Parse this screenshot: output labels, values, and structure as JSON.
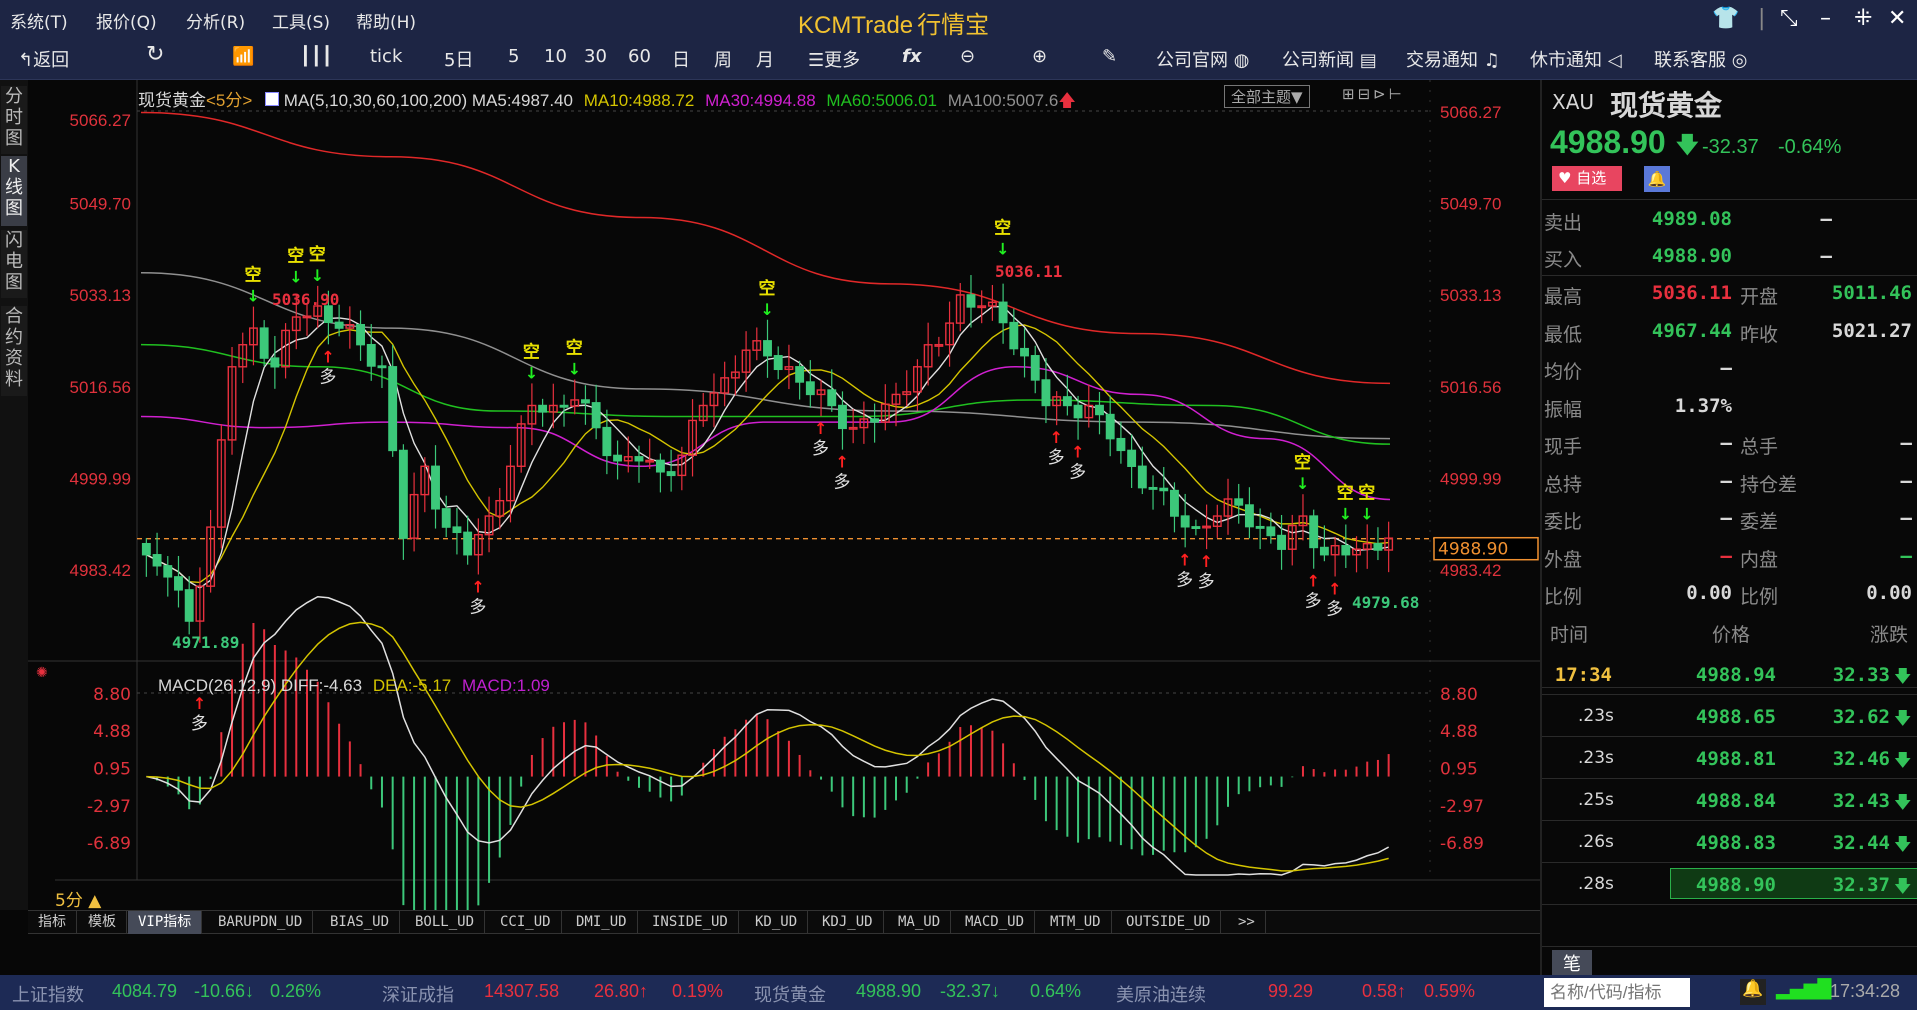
{
  "menu": [
    "系统(T)",
    "报价(Q)",
    "分析(R)",
    "工具(S)",
    "帮助(H)"
  ],
  "logo": {
    "brand": "KCMTrade",
    "product": "行情宝"
  },
  "window": {
    "icons": [
      "shirt-icon",
      "restore-icon",
      "minimize-icon",
      "maximize-icon",
      "close-icon"
    ]
  },
  "toolbar": {
    "back": "返回",
    "refresh": "refresh-icon",
    "periods": [
      "tick",
      "5日",
      "5",
      "10",
      "30",
      "60",
      "日",
      "周",
      "月"
    ],
    "more": "更多",
    "links": [
      "公司官网",
      "公司新闻",
      "交易通知",
      "休市通知",
      "联系客服"
    ]
  },
  "vtabs": [
    "分时图",
    "K线图",
    "闪电图",
    "合约资料"
  ],
  "chart_header": {
    "symbol": "现货黄金",
    "period": "<5分>",
    "ma_def": "MA(5,10,30,60,100,200)",
    "ma5": "MA5:4987.40",
    "ma10": "MA10:4988.72",
    "ma30": "MA30:4994.88",
    "ma60": "MA60:5006.01",
    "ma100": "MA100:5007.6",
    "theme": "全部主题▼"
  },
  "colors": {
    "up": "#e8303e",
    "down": "#3cc87a",
    "ma5": "#e0e0e0",
    "ma10": "#d4c400",
    "ma30": "#d020d0",
    "ma60": "#20c020",
    "ma100": "#909090",
    "ma200": "#e02828",
    "last": "#f09030"
  },
  "chart_data": {
    "type": "candlestick",
    "y_ticks": [
      "5066.27",
      "5049.70",
      "5033.13",
      "5016.56",
      "4999.99",
      "4983.42"
    ],
    "ylim": [
      4966,
      5068
    ],
    "last_price": "4988.90",
    "high_label": "5036.11",
    "high_label2": "5036.90",
    "low_label": "4971.89",
    "low_label2": "4979.68",
    "close": [
      4986,
      4982,
      4974,
      4991,
      5020,
      5027,
      5020,
      5029,
      5031,
      5027,
      5024,
      5020,
      4989,
      5002,
      4991,
      4986,
      4993,
      5002,
      5013,
      5013,
      5014,
      5009,
      5003,
      5003,
      5001,
      5004,
      5013,
      5018,
      5023,
      5022,
      5020,
      5015,
      5013,
      5009,
      5010,
      5015,
      5020,
      5024,
      5033,
      5031,
      5028,
      5022,
      5013,
      5013,
      5013,
      5007,
      5002,
      4998,
      4993,
      4991,
      4993,
      4995,
      4991,
      4987,
      4993,
      4986,
      4986,
      4988,
      4989
    ],
    "ma100": [
      5037,
      5027,
      5016,
      5012,
      5010,
      5007
    ],
    "ma200": [
      5066,
      5058,
      5047,
      5035,
      5026,
      5017
    ],
    "ma60": [
      5024,
      5020,
      5012,
      5011,
      5011,
      5014,
      5013,
      5006
    ],
    "ma30": [
      5011,
      5009,
      5010,
      5009,
      5002,
      5010,
      5010,
      5020,
      5015,
      5007,
      4996
    ],
    "signals": {
      "sell": "空",
      "buy": "多"
    },
    "macd": {
      "header": "MACD(26,12,9)",
      "diff": "DIFF:-4.63",
      "dea": "DEA:-5.17",
      "macd": "MACD:1.09",
      "y_ticks": [
        "8.80",
        "4.88",
        "0.95",
        "-2.97",
        "-6.89"
      ],
      "ylim": [
        -10,
        10
      ]
    }
  },
  "period_label": "5分 ▲",
  "indicator_tabs": [
    "指标",
    "模板",
    "VIP指标",
    "BARUPDN_UD",
    "BIAS_UD",
    "BOLL_UD",
    "CCI_UD",
    "DMI_UD",
    "INSIDE_UD",
    "KD_UD",
    "KDJ_UD",
    "MA_UD",
    "MACD_UD",
    "MTM_UD",
    "OUTSIDE_UD",
    ">>"
  ],
  "quote": {
    "code": "XAU",
    "name": "现货黄金",
    "price": "4988.90",
    "change": "-32.37",
    "pct": "-0.64%",
    "fav": "自选",
    "sell": [
      "卖出",
      "4989.08",
      "—"
    ],
    "buy": [
      "买入",
      "4988.90",
      "—"
    ],
    "rows": [
      [
        "最高",
        "5036.11",
        "开盘",
        "5011.46"
      ],
      [
        "最低",
        "4967.44",
        "昨收",
        "5021.27"
      ],
      [
        "均价",
        "—",
        "",
        ""
      ],
      [
        "振幅",
        "1.37%",
        "",
        ""
      ],
      [
        "现手",
        "—",
        "总手",
        "—"
      ],
      [
        "总持",
        "—",
        "持仓差",
        "—"
      ],
      [
        "委比",
        "—",
        "委差",
        "—"
      ],
      [
        "外盘",
        "—",
        "内盘",
        "—"
      ],
      [
        "比例",
        "0.00",
        "比例",
        "0.00"
      ]
    ]
  },
  "ticks": {
    "headers": [
      "时间",
      "价格",
      "涨跌"
    ],
    "rows": [
      [
        "17:34",
        "4988.94",
        "32.33"
      ],
      [
        ".23s",
        "4988.65",
        "32.62"
      ],
      [
        ".23s",
        "4988.81",
        "32.46"
      ],
      [
        ".25s",
        "4988.84",
        "32.43"
      ],
      [
        ".26s",
        "4988.83",
        "32.44"
      ],
      [
        ".28s",
        "4988.90",
        "32.37"
      ]
    ],
    "tab": "笔"
  },
  "status": {
    "items": [
      [
        "上证指数",
        "4084.79",
        "-10.66↓",
        "0.26%",
        "g"
      ],
      [
        "深证成指",
        "14307.58",
        "26.80↑",
        "0.19%",
        "r"
      ],
      [
        "现货黄金",
        "4988.90",
        "-32.37↓",
        "0.64%",
        "g"
      ],
      [
        "美原油连续",
        "99.29",
        "0.58↑",
        "0.59%",
        "r"
      ]
    ],
    "search_placeholder": "名称/代码/指标",
    "time": "17:34:28"
  }
}
